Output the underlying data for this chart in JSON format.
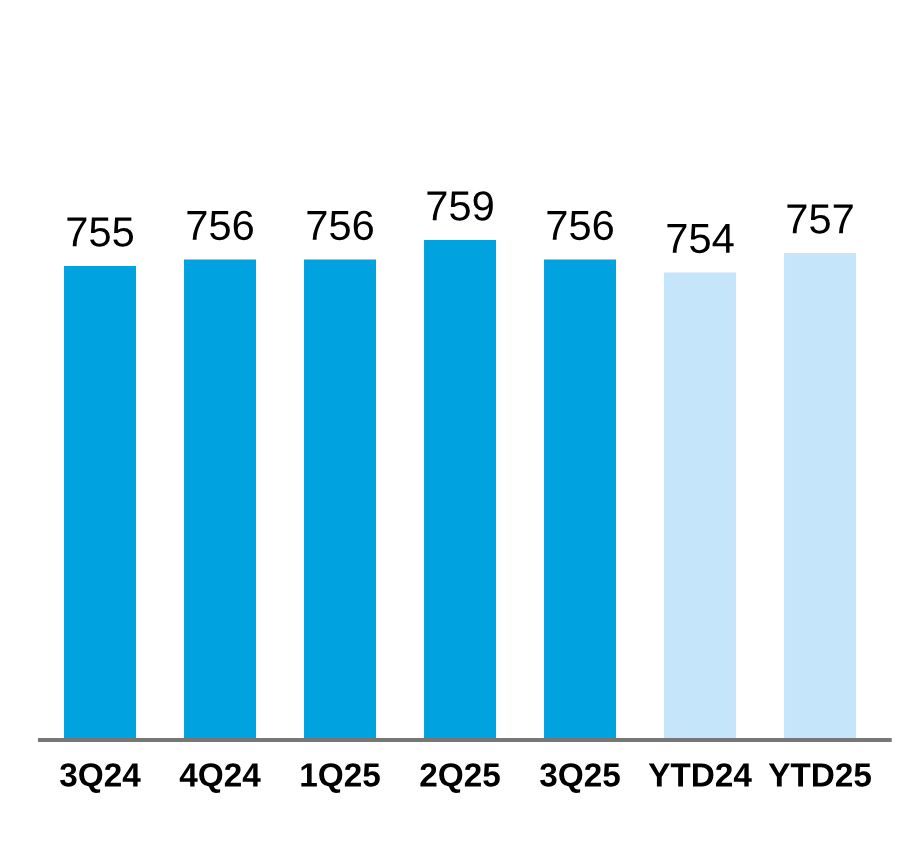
{
  "chart_data": {
    "type": "bar",
    "categories": [
      "3Q24",
      "4Q24",
      "1Q25",
      "2Q25",
      "3Q25",
      "YTD24",
      "YTD25"
    ],
    "values": [
      755,
      756,
      756,
      759,
      756,
      754,
      757
    ],
    "colors": [
      "#00a3e0",
      "#00a3e0",
      "#00a3e0",
      "#00a3e0",
      "#00a3e0",
      "#c5e5fb",
      "#c5e5fb"
    ],
    "ylim": [
      682,
      759
    ],
    "data_labels": true,
    "grid": false,
    "legend": false
  }
}
